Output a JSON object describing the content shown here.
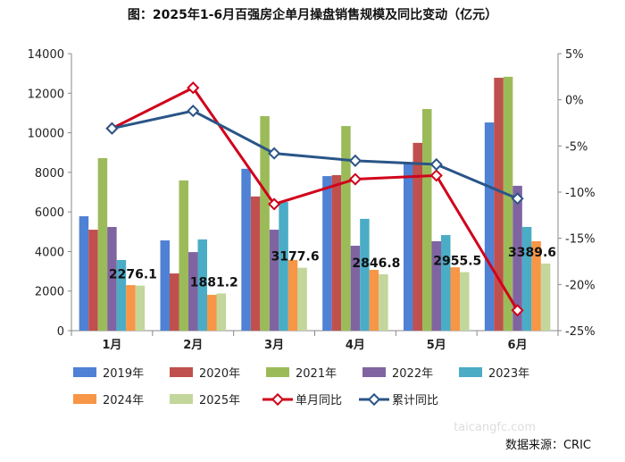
{
  "chart_data": {
    "type": "bar",
    "title": "图：2025年1-6月百强房企单月操盘销售规模及同比变动（亿元）",
    "categories": [
      "1月",
      "2月",
      "3月",
      "4月",
      "5月",
      "6月"
    ],
    "ylim": [
      0,
      14000
    ],
    "yticks": [
      "0",
      "2000",
      "4000",
      "6000",
      "8000",
      "10000",
      "12000",
      "14000"
    ],
    "y2lim": [
      -25,
      5
    ],
    "y2ticks": [
      "-25%",
      "-20%",
      "-15%",
      "-10%",
      "-5%",
      "0%",
      "5%"
    ],
    "grid": false,
    "legend_position": "bottom",
    "series": [
      {
        "name": "2019年",
        "type": "bar",
        "color": "#4f81d4",
        "values": [
          5780,
          4560,
          8180,
          7810,
          8450,
          10520
        ]
      },
      {
        "name": "2020年",
        "type": "bar",
        "color": "#c0504d",
        "values": [
          5100,
          2890,
          6780,
          7860,
          9490,
          12780
        ]
      },
      {
        "name": "2021年",
        "type": "bar",
        "color": "#9bbb59",
        "values": [
          8720,
          7590,
          10840,
          10340,
          11200,
          12830
        ]
      },
      {
        "name": "2022年",
        "type": "bar",
        "color": "#8064a2",
        "values": [
          5240,
          3970,
          5100,
          4290,
          4520,
          7320
        ]
      },
      {
        "name": "2023年",
        "type": "bar",
        "color": "#4bacc6",
        "values": [
          3570,
          4610,
          6500,
          5650,
          4830,
          5240
        ]
      },
      {
        "name": "2024年",
        "type": "bar",
        "color": "#f79646",
        "values": [
          2300,
          1810,
          3570,
          3070,
          3200,
          4520
        ]
      },
      {
        "name": "2025年",
        "type": "bar",
        "color": "#c3d69b",
        "values": [
          2276.1,
          1881.2,
          3177.6,
          2846.8,
          2955.5,
          3389.6
        ],
        "data_labels": [
          "2276.1",
          "1881.2",
          "3177.6",
          "2846.8",
          "2955.5",
          "3389.6"
        ]
      },
      {
        "name": "单月同比",
        "type": "line",
        "axis": "right",
        "color": "#d0021b",
        "values": [
          -3.1,
          1.3,
          -11.3,
          -8.6,
          -8.2,
          -22.8
        ]
      },
      {
        "name": "累计同比",
        "type": "line",
        "axis": "right",
        "color": "#2a5587",
        "values": [
          -3.1,
          -1.2,
          -5.8,
          -6.6,
          -7.0,
          -10.7
        ]
      }
    ]
  },
  "source": "数据来源：CRIC",
  "watermark": "taicangfc.com"
}
